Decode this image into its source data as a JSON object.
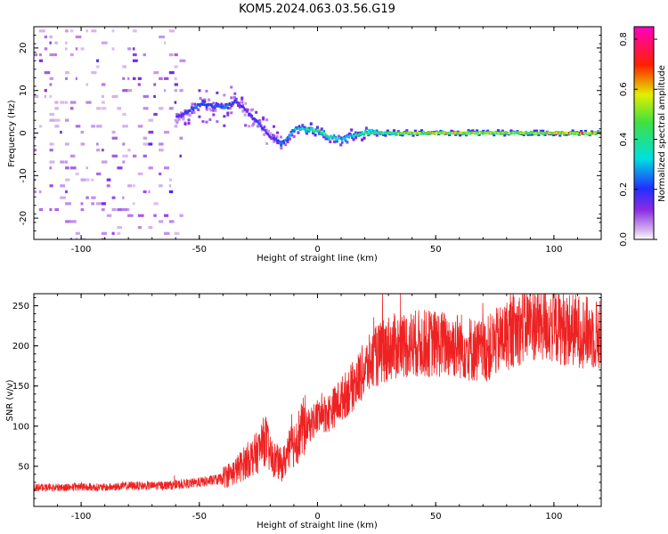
{
  "title": "KOM5.2024.063.03.56.G19",
  "colors": {
    "snr_line": "#ee2222"
  },
  "chart_data": [
    {
      "type": "heatmap",
      "xlabel": "Height of straight line (km)",
      "ylabel": "Frequency (Hz)",
      "xlim": [
        -120,
        120
      ],
      "ylim": [
        -25,
        25
      ],
      "xticks": [
        -100,
        -50,
        0,
        50,
        100
      ],
      "yticks": [
        -20,
        -10,
        0,
        10,
        20
      ],
      "colormap": "rainbow (magenta to blue to cyan to green to yellow to red to magenta)",
      "colorbar": {
        "label": "Normalized spectral amplitude",
        "range": [
          0,
          0.85
        ],
        "ticks": [
          "0.0",
          "0.2",
          "0.4",
          "0.6",
          "0.8"
        ]
      },
      "ridge": {
        "x": [
          -60,
          -55,
          -50,
          -45,
          -40,
          -35,
          -30,
          -25,
          -20,
          -15,
          -10,
          -5,
          0,
          5,
          10,
          15,
          20,
          30,
          50,
          70,
          90,
          110,
          120
        ],
        "freq": [
          4,
          5,
          7,
          6.5,
          6,
          7.5,
          5,
          2,
          -1,
          -2.5,
          1,
          1,
          0.5,
          -1,
          -1.5,
          -0.5,
          0,
          0,
          0,
          0,
          0,
          0,
          0
        ],
        "amplitude": [
          0.15,
          0.2,
          0.25,
          0.2,
          0.25,
          0.2,
          0.15,
          0.2,
          0.15,
          0.25,
          0.3,
          0.35,
          0.45,
          0.35,
          0.3,
          0.35,
          0.4,
          0.45,
          0.55,
          0.5,
          0.5,
          0.6,
          0.55
        ]
      }
    },
    {
      "type": "line",
      "xlabel": "Height of straight line (km)",
      "ylabel": "SNR (v/v)",
      "xlim": [
        -120,
        120
      ],
      "ylim": [
        0,
        265
      ],
      "xticks": [
        -100,
        -50,
        0,
        50,
        100
      ],
      "yticks": [
        50,
        100,
        150,
        200,
        250
      ],
      "series": [
        {
          "x": [
            -120,
            -110,
            -100,
            -90,
            -80,
            -70,
            -60,
            -50,
            -40,
            -35,
            -30,
            -25,
            -22,
            -20,
            -15,
            -10,
            -5,
            0,
            5,
            10,
            15,
            20,
            25,
            30,
            40,
            50,
            60,
            70,
            80,
            90,
            100,
            110,
            120
          ],
          "values": [
            22,
            22,
            23,
            22,
            24,
            24,
            25,
            28,
            32,
            38,
            50,
            60,
            75,
            55,
            45,
            70,
            90,
            105,
            110,
            125,
            140,
            160,
            175,
            185,
            190,
            190,
            188,
            180,
            200,
            215,
            210,
            205,
            200
          ]
        }
      ]
    }
  ]
}
